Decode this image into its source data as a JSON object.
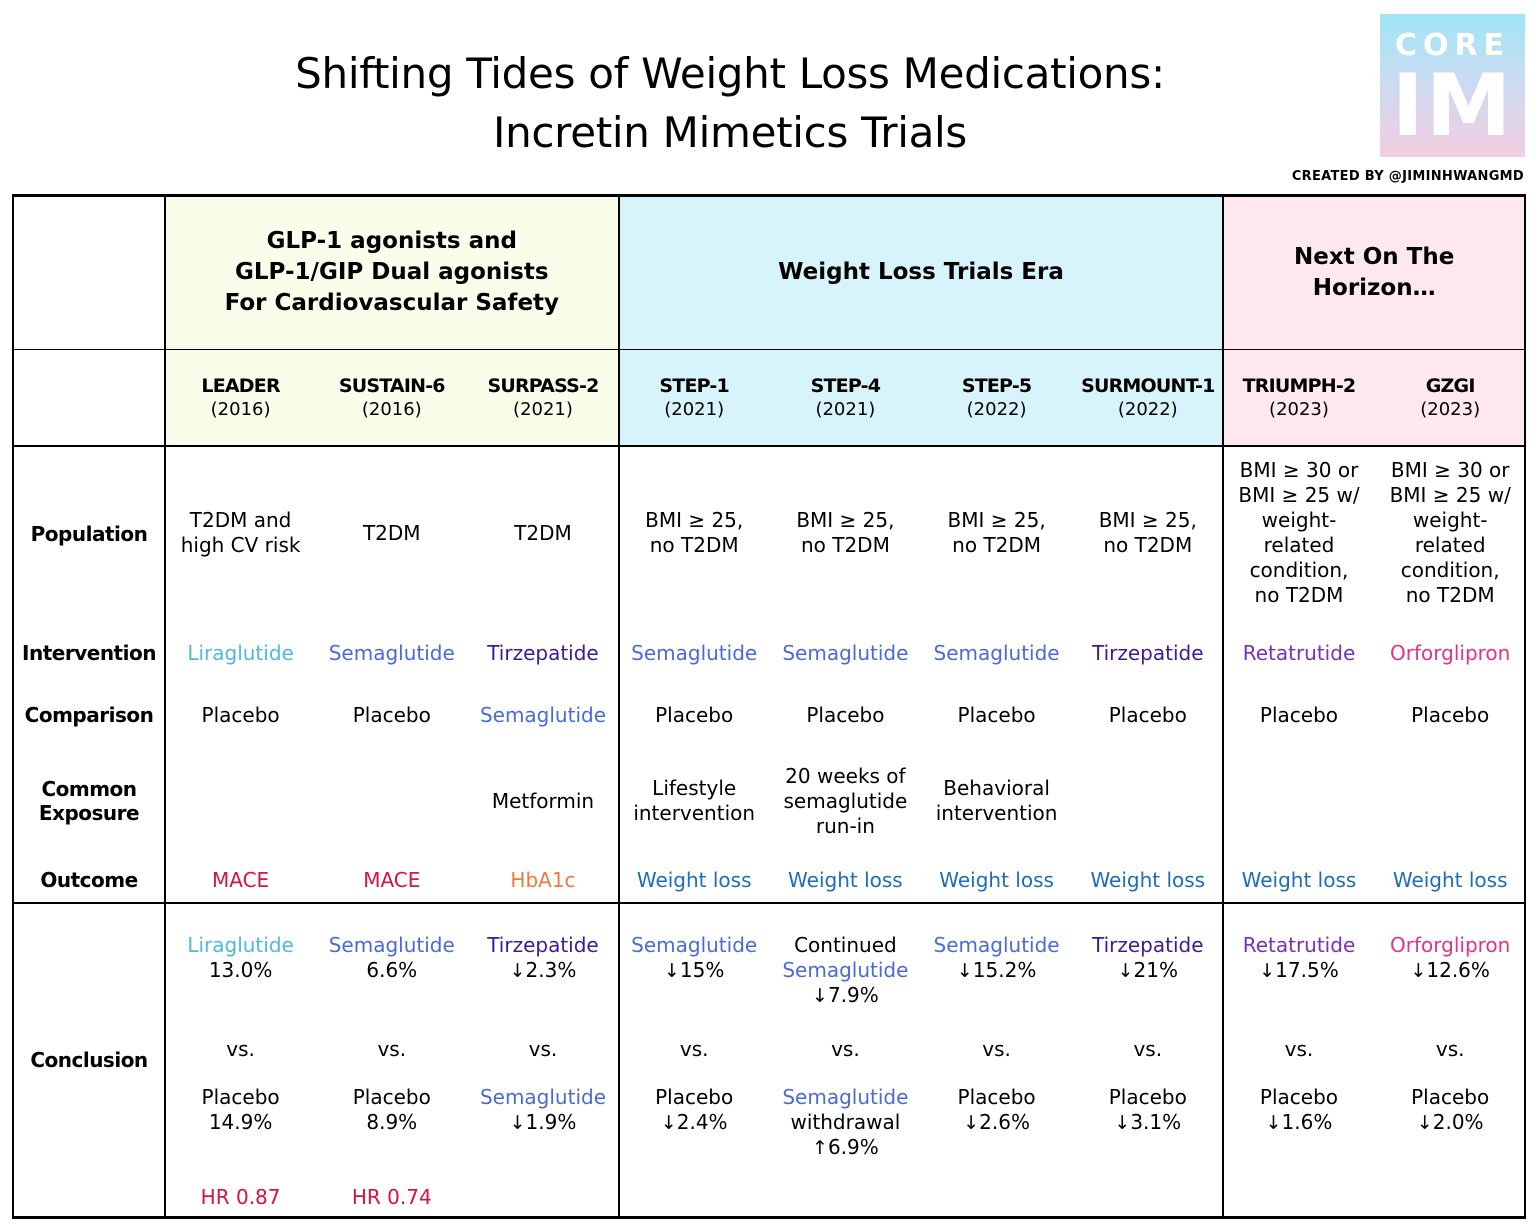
{
  "header": {
    "title_line1": "Shifting Tides of Weight Loss Medications:",
    "title_line2": "Incretin Mimetics Trials",
    "logo_top": "CORE",
    "logo_bottom": "IM",
    "credit": "CREATED BY @JIMINHWANGMD"
  },
  "colors": {
    "group1_bg": "#fafde9",
    "group2_bg": "#d8f4fb",
    "group3_bg": "#fde8ee",
    "liraglutide": "#4fb9de",
    "semaglutide": "#4a6bd6",
    "tirzepatide": "#3d1a96",
    "retatrutide": "#7b2fb8",
    "orforglipron": "#e0338a",
    "mace": "#d6143c",
    "hba1c": "#f07a3c",
    "weight_loss": "#1f6db5"
  },
  "groups": [
    {
      "line1": "GLP-1 agonists and",
      "line2": "GLP-1/GIP Dual agonists",
      "line3": "For Cardiovascular Safety"
    },
    {
      "line1": "Weight Loss Trials Era"
    },
    {
      "line1": "Next On The",
      "line2": "Horizon…"
    }
  ],
  "row_labels": {
    "population": "Population",
    "intervention": "Intervention",
    "comparison": "Comparison",
    "common_exposure_1": "Common",
    "common_exposure_2": "Exposure",
    "outcome": "Outcome",
    "conclusion": "Conclusion"
  },
  "trials": [
    {
      "name": "LEADER",
      "year": "(2016)",
      "pop": [
        "T2DM and",
        "high CV risk"
      ],
      "intervention": "Liraglutide",
      "intervention_color": "liraglutide",
      "comparison": "Placebo",
      "comparison_color": "black",
      "exposure": [],
      "outcome": "MACE",
      "outcome_color": "mace",
      "c_drug": "Liraglutide",
      "c_drug_color": "liraglutide",
      "c_drug2": "",
      "c_val": "13.0%",
      "c_arrow": "",
      "vs": "vs.",
      "c_comp": "Placebo",
      "c_comp_color": "black",
      "c_comp2": "",
      "c_comp_val": "14.9%",
      "c_comp_arrow": "",
      "hr": "HR 0.87"
    },
    {
      "name": "SUSTAIN-6",
      "year": "(2016)",
      "pop": [
        "T2DM"
      ],
      "intervention": "Semaglutide",
      "intervention_color": "semaglutide",
      "comparison": "Placebo",
      "comparison_color": "black",
      "exposure": [],
      "outcome": "MACE",
      "outcome_color": "mace",
      "c_drug": "Semaglutide",
      "c_drug_color": "semaglutide",
      "c_drug2": "",
      "c_val": "6.6%",
      "c_arrow": "",
      "vs": "vs.",
      "c_comp": "Placebo",
      "c_comp_color": "black",
      "c_comp2": "",
      "c_comp_val": "8.9%",
      "c_comp_arrow": "",
      "hr": "HR 0.74"
    },
    {
      "name": "SURPASS-2",
      "year": "(2021)",
      "pop": [
        "T2DM"
      ],
      "intervention": "Tirzepatide",
      "intervention_color": "tirzepatide",
      "comparison": "Semaglutide",
      "comparison_color": "semaglutide",
      "exposure": [
        "Metformin"
      ],
      "outcome": "HbA1c",
      "outcome_color": "hba1c",
      "c_drug": "Tirzepatide",
      "c_drug_color": "tirzepatide",
      "c_drug2": "",
      "c_val": "2.3%",
      "c_arrow": "↓",
      "vs": "vs.",
      "c_comp": "Semaglutide",
      "c_comp_color": "semaglutide",
      "c_comp2": "",
      "c_comp_val": "1.9%",
      "c_comp_arrow": "↓",
      "hr": ""
    },
    {
      "name": "STEP-1",
      "year": "(2021)",
      "pop": [
        "BMI ≥ 25,",
        "no T2DM"
      ],
      "intervention": "Semaglutide",
      "intervention_color": "semaglutide",
      "comparison": "Placebo",
      "comparison_color": "black",
      "exposure": [
        "Lifestyle",
        "intervention"
      ],
      "outcome": "Weight loss",
      "outcome_color": "weight_loss",
      "c_drug": "Semaglutide",
      "c_drug_color": "semaglutide",
      "c_drug2": "",
      "c_val": "15%",
      "c_arrow": "↓",
      "vs": "vs.",
      "c_comp": "Placebo",
      "c_comp_color": "black",
      "c_comp2": "",
      "c_comp_val": "2.4%",
      "c_comp_arrow": "↓",
      "hr": ""
    },
    {
      "name": "STEP-4",
      "year": "(2021)",
      "pop": [
        "BMI ≥ 25,",
        "no T2DM"
      ],
      "intervention": "Semaglutide",
      "intervention_color": "semaglutide",
      "comparison": "Placebo",
      "comparison_color": "black",
      "exposure": [
        "20 weeks of",
        "semaglutide",
        "run-in"
      ],
      "outcome": "Weight loss",
      "outcome_color": "weight_loss",
      "c_pre": "Continued",
      "c_drug": "Semaglutide",
      "c_drug_color": "semaglutide",
      "c_drug2": "",
      "c_val": "7.9%",
      "c_arrow": "↓",
      "vs": "vs.",
      "c_comp": "Semaglutide",
      "c_comp_color": "semaglutide",
      "c_comp2": "withdrawal",
      "c_comp_val": "6.9%",
      "c_comp_arrow": "↑",
      "hr": ""
    },
    {
      "name": "STEP-5",
      "year": "(2022)",
      "pop": [
        "BMI ≥ 25,",
        "no T2DM"
      ],
      "intervention": "Semaglutide",
      "intervention_color": "semaglutide",
      "comparison": "Placebo",
      "comparison_color": "black",
      "exposure": [
        "Behavioral",
        "intervention"
      ],
      "outcome": "Weight loss",
      "outcome_color": "weight_loss",
      "c_drug": "Semaglutide",
      "c_drug_color": "semaglutide",
      "c_drug2": "",
      "c_val": "15.2%",
      "c_arrow": "↓",
      "vs": "vs.",
      "c_comp": "Placebo",
      "c_comp_color": "black",
      "c_comp2": "",
      "c_comp_val": "2.6%",
      "c_comp_arrow": "↓",
      "hr": ""
    },
    {
      "name": "SURMOUNT-1",
      "year": "(2022)",
      "pop": [
        "BMI ≥ 25,",
        "no T2DM"
      ],
      "intervention": "Tirzepatide",
      "intervention_color": "tirzepatide",
      "comparison": "Placebo",
      "comparison_color": "black",
      "exposure": [],
      "outcome": "Weight loss",
      "outcome_color": "weight_loss",
      "c_drug": "Tirzepatide",
      "c_drug_color": "tirzepatide",
      "c_drug2": "",
      "c_val": "21%",
      "c_arrow": "↓",
      "vs": "vs.",
      "c_comp": "Placebo",
      "c_comp_color": "black",
      "c_comp2": "",
      "c_comp_val": "3.1%",
      "c_comp_arrow": "↓",
      "hr": ""
    },
    {
      "name": "TRIUMPH-2",
      "year": "(2023)",
      "pop": [
        "BMI ≥ 30 or",
        "BMI ≥ 25 w/",
        "weight-",
        "related",
        "condition,",
        "no T2DM"
      ],
      "intervention": "Retatrutide",
      "intervention_color": "retatrutide",
      "comparison": "Placebo",
      "comparison_color": "black",
      "exposure": [],
      "outcome": "Weight loss",
      "outcome_color": "weight_loss",
      "c_drug": "Retatrutide",
      "c_drug_color": "retatrutide",
      "c_drug2": "",
      "c_val": "17.5%",
      "c_arrow": "↓",
      "vs": "vs.",
      "c_comp": "Placebo",
      "c_comp_color": "black",
      "c_comp2": "",
      "c_comp_val": "1.6%",
      "c_comp_arrow": "↓",
      "hr": ""
    },
    {
      "name": "GZGI",
      "year": "(2023)",
      "pop": [
        "BMI ≥ 30 or",
        "BMI ≥ 25 w/",
        "weight-",
        "related",
        "condition,",
        "no T2DM"
      ],
      "intervention": "Orforglipron",
      "intervention_color": "orforglipron",
      "comparison": "Placebo",
      "comparison_color": "black",
      "exposure": [],
      "outcome": "Weight loss",
      "outcome_color": "weight_loss",
      "c_drug": "Orforglipron",
      "c_drug_color": "orforglipron",
      "c_drug2": "",
      "c_val": "12.6%",
      "c_arrow": "↓",
      "vs": "vs.",
      "c_comp": "Placebo",
      "c_comp_color": "black",
      "c_comp2": "",
      "c_comp_val": "2.0%",
      "c_comp_arrow": "↓",
      "hr": ""
    }
  ]
}
